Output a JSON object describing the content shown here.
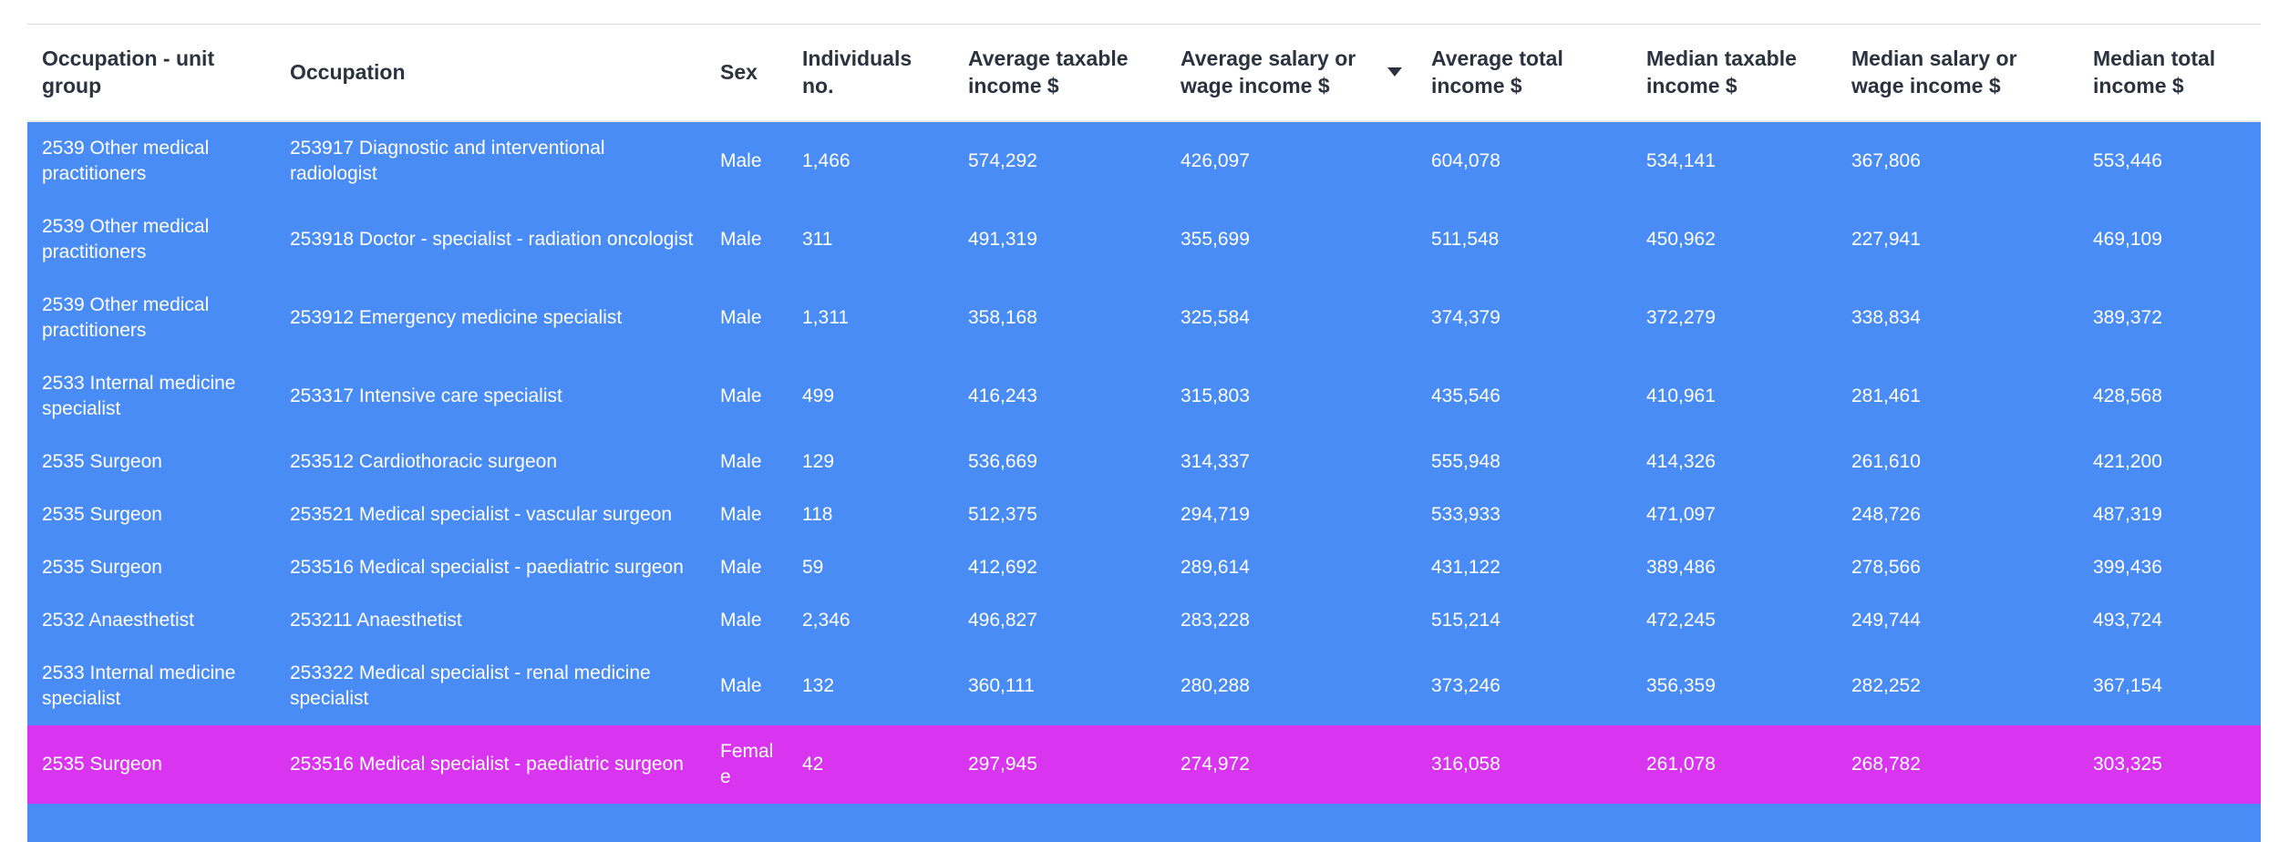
{
  "colors": {
    "row_selected_blue": "#4a8cf5",
    "row_highlight_magenta": "#d935f0",
    "header_text": "#2b3240",
    "row_text": "#ffffff"
  },
  "icons": {
    "sort_descending": "triangle-down"
  },
  "table": {
    "columns": [
      {
        "label": "Occupation - unit group",
        "field": "unit_group"
      },
      {
        "label": "Occupation",
        "field": "occupation"
      },
      {
        "label": "Sex",
        "field": "sex"
      },
      {
        "label": "Individuals no.",
        "field": "individuals"
      },
      {
        "label": "Average taxable income $",
        "field": "avg_taxable_income"
      },
      {
        "label": "Average salary or wage income $",
        "field": "avg_salary_wage_income",
        "sorted": "descending"
      },
      {
        "label": "Average total income $",
        "field": "avg_total_income"
      },
      {
        "label": "Median taxable income $",
        "field": "med_taxable_income"
      },
      {
        "label": "Median salary or wage income $",
        "field": "med_salary_wage_income"
      },
      {
        "label": "Median total income $",
        "field": "med_total_income"
      }
    ],
    "rows": [
      {
        "unit_group": "2539 Other medical practitioners",
        "occupation": "253917 Diagnostic and interventional radiologist",
        "sex": "Male",
        "individuals": "1,466",
        "avg_taxable_income": "574,292",
        "avg_salary_wage_income": "426,097",
        "avg_total_income": "604,078",
        "med_taxable_income": "534,141",
        "med_salary_wage_income": "367,806",
        "med_total_income": "553,446",
        "highlight": "blue"
      },
      {
        "unit_group": "2539 Other medical practitioners",
        "occupation": "253918 Doctor - specialist - radiation oncologist",
        "sex": "Male",
        "individuals": "311",
        "avg_taxable_income": "491,319",
        "avg_salary_wage_income": "355,699",
        "avg_total_income": "511,548",
        "med_taxable_income": "450,962",
        "med_salary_wage_income": "227,941",
        "med_total_income": "469,109",
        "highlight": "blue"
      },
      {
        "unit_group": "2539 Other medical practitioners",
        "occupation": "253912 Emergency medicine specialist",
        "sex": "Male",
        "individuals": "1,311",
        "avg_taxable_income": "358,168",
        "avg_salary_wage_income": "325,584",
        "avg_total_income": "374,379",
        "med_taxable_income": "372,279",
        "med_salary_wage_income": "338,834",
        "med_total_income": "389,372",
        "highlight": "blue"
      },
      {
        "unit_group": "2533 Internal medicine specialist",
        "occupation": "253317 Intensive care specialist",
        "sex": "Male",
        "individuals": "499",
        "avg_taxable_income": "416,243",
        "avg_salary_wage_income": "315,803",
        "avg_total_income": "435,546",
        "med_taxable_income": "410,961",
        "med_salary_wage_income": "281,461",
        "med_total_income": "428,568",
        "highlight": "blue"
      },
      {
        "unit_group": "2535 Surgeon",
        "occupation": "253512 Cardiothoracic surgeon",
        "sex": "Male",
        "individuals": "129",
        "avg_taxable_income": "536,669",
        "avg_salary_wage_income": "314,337",
        "avg_total_income": "555,948",
        "med_taxable_income": "414,326",
        "med_salary_wage_income": "261,610",
        "med_total_income": "421,200",
        "highlight": "blue"
      },
      {
        "unit_group": "2535 Surgeon",
        "occupation": "253521 Medical specialist - vascular surgeon",
        "sex": "Male",
        "individuals": "118",
        "avg_taxable_income": "512,375",
        "avg_salary_wage_income": "294,719",
        "avg_total_income": "533,933",
        "med_taxable_income": "471,097",
        "med_salary_wage_income": "248,726",
        "med_total_income": "487,319",
        "highlight": "blue"
      },
      {
        "unit_group": "2535 Surgeon",
        "occupation": "253516 Medical specialist - paediatric surgeon",
        "sex": "Male",
        "individuals": "59",
        "avg_taxable_income": "412,692",
        "avg_salary_wage_income": "289,614",
        "avg_total_income": "431,122",
        "med_taxable_income": "389,486",
        "med_salary_wage_income": "278,566",
        "med_total_income": "399,436",
        "highlight": "blue"
      },
      {
        "unit_group": "2532 Anaesthetist",
        "occupation": "253211 Anaesthetist",
        "sex": "Male",
        "individuals": "2,346",
        "avg_taxable_income": "496,827",
        "avg_salary_wage_income": "283,228",
        "avg_total_income": "515,214",
        "med_taxable_income": "472,245",
        "med_salary_wage_income": "249,744",
        "med_total_income": "493,724",
        "highlight": "blue"
      },
      {
        "unit_group": "2533 Internal medicine specialist",
        "occupation": "253322 Medical specialist - renal medicine specialist",
        "sex": "Male",
        "individuals": "132",
        "avg_taxable_income": "360,111",
        "avg_salary_wage_income": "280,288",
        "avg_total_income": "373,246",
        "med_taxable_income": "356,359",
        "med_salary_wage_income": "282,252",
        "med_total_income": "367,154",
        "highlight": "blue"
      },
      {
        "unit_group": "2535 Surgeon",
        "occupation": "253516 Medical specialist - paediatric surgeon",
        "sex": "Female",
        "individuals": "42",
        "avg_taxable_income": "297,945",
        "avg_salary_wage_income": "274,972",
        "avg_total_income": "316,058",
        "med_taxable_income": "261,078",
        "med_salary_wage_income": "268,782",
        "med_total_income": "303,325",
        "highlight": "magenta"
      }
    ]
  }
}
